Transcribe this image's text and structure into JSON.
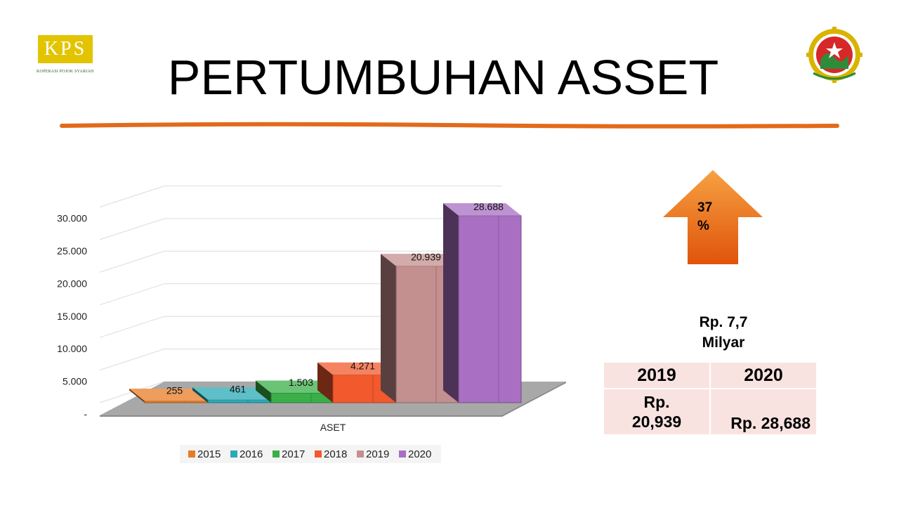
{
  "logo_left": {
    "text": "KPS",
    "caption": "KOPERASI POJOK SYARIAH"
  },
  "title": "PERTUMBUHAN ASSET",
  "colors": {
    "divider": "#e26a1a",
    "accent": "#e8620e",
    "table_bg": "#f9e3e0"
  },
  "growth_arrow": {
    "icon": "up-arrow-icon",
    "label": "37\n%"
  },
  "growth_amount": "Rp. 7,7\nMilyar",
  "summary_table": {
    "headers": [
      "2019",
      "2020"
    ],
    "values": [
      "Rp.\n20,939",
      "Rp. 28,688"
    ]
  },
  "chart_data": {
    "type": "bar",
    "category": "ASET",
    "xlabel": "ASET",
    "ylim": [
      0,
      30000
    ],
    "yticks": [
      "-",
      "5.000",
      "10.000",
      "15.000",
      "20.000",
      "25.000",
      "30.000"
    ],
    "grid": true,
    "legend_position": "bottom",
    "series": [
      {
        "name": "2015",
        "value": 255,
        "label": "255",
        "color": "#e87c25"
      },
      {
        "name": "2016",
        "value": 461,
        "label": "461",
        "color": "#2aaab6"
      },
      {
        "name": "2017",
        "value": 1503,
        "label": "1.503",
        "color": "#3aaf48"
      },
      {
        "name": "2018",
        "value": 4271,
        "label": "4.271",
        "color": "#f2592c"
      },
      {
        "name": "2019",
        "value": 20939,
        "label": "20.939",
        "color": "#c48f8f"
      },
      {
        "name": "2020",
        "value": 28688,
        "label": "28.688",
        "color": "#a86fc2"
      }
    ]
  }
}
